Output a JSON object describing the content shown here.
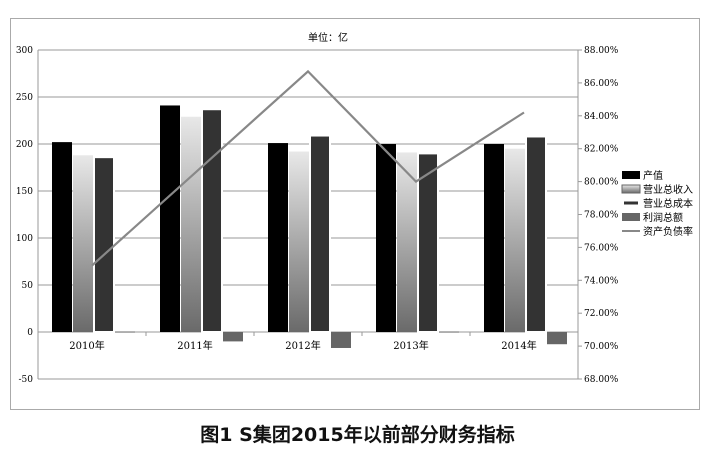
{
  "chart_data": {
    "type": "bar",
    "title": "单位：亿",
    "categories": [
      "2010年",
      "2011年",
      "2012年",
      "2013年",
      "2014年"
    ],
    "series": [
      {
        "name": "产值",
        "type": "bar",
        "axis": "left",
        "color": "#000000",
        "values": [
          202,
          241,
          201,
          200,
          200
        ]
      },
      {
        "name": "营业总收入",
        "type": "bar",
        "axis": "left",
        "color": "gradient-gray",
        "values": [
          188,
          229,
          192,
          191,
          195
        ]
      },
      {
        "name": "营业总成本",
        "type": "bar",
        "axis": "left",
        "color": "#333333",
        "values": [
          186,
          237,
          209,
          190,
          208
        ]
      },
      {
        "name": "利润总额",
        "type": "bar",
        "axis": "left",
        "color": "#666666",
        "values": [
          0.5,
          -10,
          -17,
          0.5,
          -13
        ]
      },
      {
        "name": "资产负债率",
        "type": "line",
        "axis": "right",
        "color": "#888888",
        "values": [
          74.9,
          80.8,
          86.7,
          80.0,
          84.2
        ]
      }
    ],
    "ylim": [
      -50,
      300
    ],
    "yticks": [
      "-50",
      "0",
      "50",
      "100",
      "150",
      "200",
      "250",
      "300"
    ],
    "y2lim": [
      68,
      88
    ],
    "y2ticks": [
      "68.00%",
      "70.00%",
      "72.00%",
      "74.00%",
      "76.00%",
      "78.00%",
      "80.00%",
      "82.00%",
      "84.00%",
      "86.00%",
      "88.00%"
    ],
    "grid": true,
    "legend": "right"
  },
  "caption": "图1  S集团2015年以前部分财务指标"
}
